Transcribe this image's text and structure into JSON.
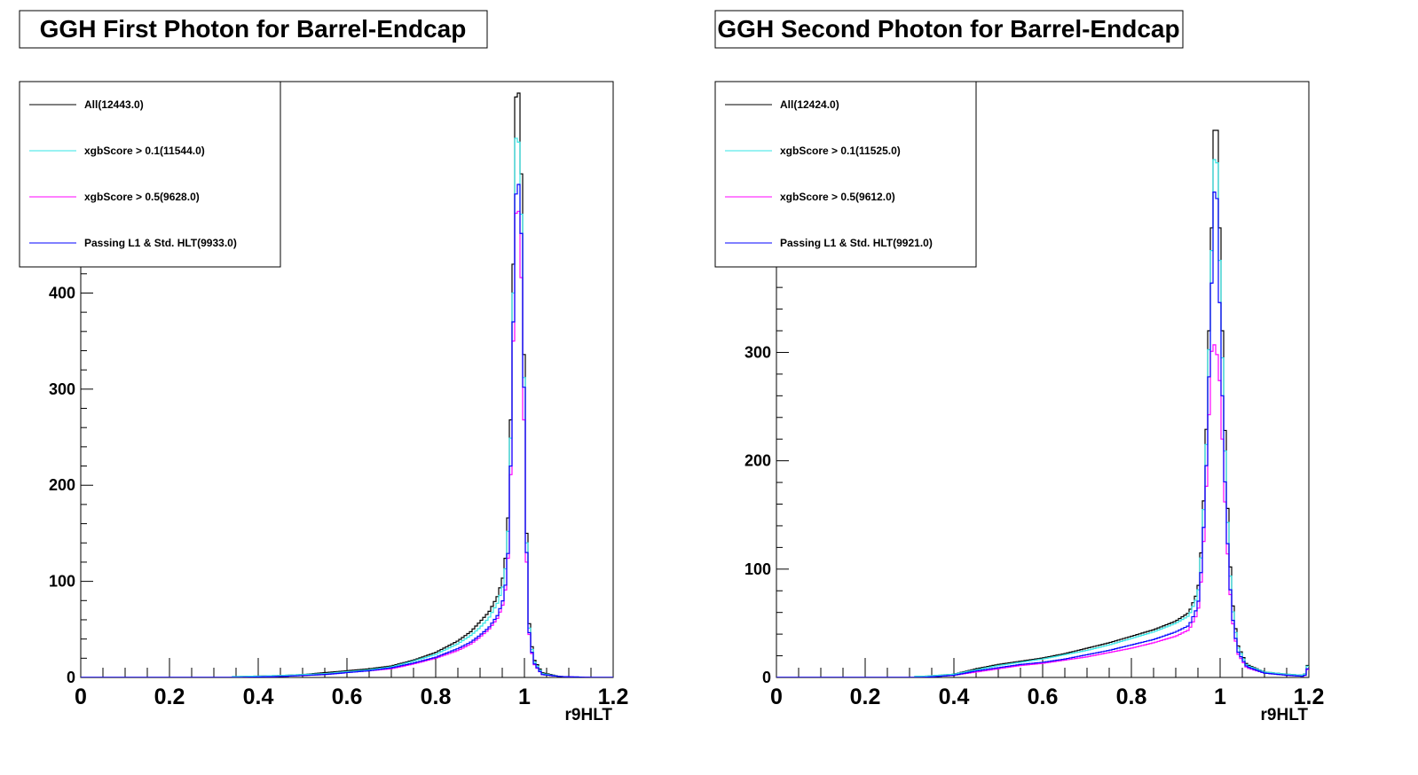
{
  "colors": {
    "all": "#000000",
    "xgb01": "#33e6e6",
    "xgb05": "#ff00ff",
    "l1hlt": "#0000ff"
  },
  "chart_data": [
    {
      "type": "histogram",
      "title": "GGH First Photon for Barrel-Endcap",
      "xlabel": "r9HLT",
      "ylabel": "",
      "xlim": [
        0,
        1.2
      ],
      "ylim": [
        0,
        620
      ],
      "xticks": [
        "0",
        "0.2",
        "0.4",
        "0.6",
        "0.8",
        "1",
        "1.2"
      ],
      "yticks": [
        "0",
        "100",
        "200",
        "300",
        "400"
      ],
      "legend_position": "top-left",
      "legend": [
        "All(12443.0)",
        "xgbScore > 0.1(11544.0)",
        "xgbScore > 0.5(9628.0)",
        "Passing L1 & Std. HLT(9933.0)"
      ],
      "series": [
        {
          "name": "All(12443.0)",
          "color_key": "all",
          "points": [
            [
              0.36,
              1
            ],
            [
              0.45,
              2
            ],
            [
              0.5,
              3
            ],
            [
              0.55,
              5
            ],
            [
              0.6,
              7
            ],
            [
              0.65,
              9
            ],
            [
              0.7,
              12
            ],
            [
              0.75,
              18
            ],
            [
              0.8,
              26
            ],
            [
              0.85,
              38
            ],
            [
              0.88,
              48
            ],
            [
              0.9,
              58
            ],
            [
              0.92,
              68
            ],
            [
              0.94,
              85
            ],
            [
              0.955,
              110
            ],
            [
              0.965,
              180
            ],
            [
              0.97,
              290
            ],
            [
              0.975,
              430
            ],
            [
              0.98,
              600
            ],
            [
              0.985,
              620
            ],
            [
              0.99,
              590
            ],
            [
              0.995,
              480
            ],
            [
              1.0,
              300
            ],
            [
              1.005,
              150
            ],
            [
              1.01,
              60
            ],
            [
              1.02,
              20
            ],
            [
              1.04,
              5
            ],
            [
              1.08,
              1
            ],
            [
              1.15,
              0
            ]
          ]
        },
        {
          "name": "xgbScore > 0.1(11544.0)",
          "color_key": "xgb01",
          "points": [
            [
              0.36,
              1
            ],
            [
              0.45,
              2
            ],
            [
              0.5,
              3
            ],
            [
              0.55,
              4
            ],
            [
              0.6,
              6
            ],
            [
              0.65,
              8
            ],
            [
              0.7,
              11
            ],
            [
              0.75,
              17
            ],
            [
              0.8,
              24
            ],
            [
              0.85,
              35
            ],
            [
              0.88,
              44
            ],
            [
              0.9,
              52
            ],
            [
              0.92,
              62
            ],
            [
              0.94,
              78
            ],
            [
              0.955,
              100
            ],
            [
              0.965,
              165
            ],
            [
              0.97,
              270
            ],
            [
              0.975,
              400
            ],
            [
              0.98,
              560
            ],
            [
              0.985,
              565
            ],
            [
              0.99,
              545
            ],
            [
              0.995,
              440
            ],
            [
              1.0,
              280
            ],
            [
              1.005,
              140
            ],
            [
              1.01,
              55
            ],
            [
              1.02,
              18
            ],
            [
              1.04,
              4
            ],
            [
              1.08,
              1
            ],
            [
              1.15,
              0
            ]
          ]
        },
        {
          "name": "xgbScore > 0.5(9628.0)",
          "color_key": "xgb05",
          "points": [
            [
              0.36,
              0
            ],
            [
              0.45,
              1
            ],
            [
              0.5,
              2
            ],
            [
              0.55,
              3
            ],
            [
              0.6,
              5
            ],
            [
              0.65,
              7
            ],
            [
              0.7,
              9
            ],
            [
              0.75,
              14
            ],
            [
              0.8,
              20
            ],
            [
              0.85,
              28
            ],
            [
              0.88,
              35
            ],
            [
              0.9,
              42
            ],
            [
              0.92,
              50
            ],
            [
              0.94,
              62
            ],
            [
              0.955,
              80
            ],
            [
              0.965,
              135
            ],
            [
              0.97,
              230
            ],
            [
              0.975,
              350
            ],
            [
              0.98,
              480
            ],
            [
              0.985,
              495
            ],
            [
              0.99,
              470
            ],
            [
              0.995,
              380
            ],
            [
              1.0,
              240
            ],
            [
              1.005,
              120
            ],
            [
              1.01,
              48
            ],
            [
              1.02,
              15
            ],
            [
              1.04,
              3
            ],
            [
              1.08,
              1
            ],
            [
              1.15,
              0
            ]
          ]
        },
        {
          "name": "Passing L1 & Std. HLT(9933.0)",
          "color_key": "l1hlt",
          "points": [
            [
              0.36,
              0
            ],
            [
              0.45,
              1
            ],
            [
              0.5,
              2
            ],
            [
              0.55,
              3
            ],
            [
              0.6,
              5
            ],
            [
              0.65,
              7
            ],
            [
              0.7,
              10
            ],
            [
              0.75,
              15
            ],
            [
              0.8,
              21
            ],
            [
              0.85,
              30
            ],
            [
              0.88,
              37
            ],
            [
              0.9,
              44
            ],
            [
              0.92,
              52
            ],
            [
              0.94,
              65
            ],
            [
              0.955,
              85
            ],
            [
              0.965,
              140
            ],
            [
              0.97,
              240
            ],
            [
              0.975,
              370
            ],
            [
              0.98,
              500
            ],
            [
              0.985,
              515
            ],
            [
              0.99,
              510
            ],
            [
              0.995,
              430
            ],
            [
              1.0,
              270
            ],
            [
              1.005,
              130
            ],
            [
              1.01,
              50
            ],
            [
              1.02,
              16
            ],
            [
              1.04,
              3
            ],
            [
              1.08,
              1
            ],
            [
              1.15,
              0
            ]
          ]
        }
      ]
    },
    {
      "type": "histogram",
      "title": "GGH Second Photon for Barrel-Endcap",
      "xlabel": "r9HLT",
      "ylabel": "",
      "xlim": [
        0,
        1.2
      ],
      "ylim": [
        0,
        550
      ],
      "xticks": [
        "0",
        "0.2",
        "0.4",
        "0.6",
        "0.8",
        "1",
        "1.2"
      ],
      "yticks": [
        "0",
        "100",
        "200",
        "300"
      ],
      "legend_position": "top-left",
      "legend": [
        "All(12424.0)",
        "xgbScore > 0.1(11525.0)",
        "xgbScore > 0.5(9612.0)",
        "Passing L1 & Std. HLT(9921.0)"
      ],
      "series": [
        {
          "name": "All(12424.0)",
          "color_key": "all",
          "points": [
            [
              0.33,
              1
            ],
            [
              0.4,
              3
            ],
            [
              0.45,
              8
            ],
            [
              0.5,
              12
            ],
            [
              0.55,
              15
            ],
            [
              0.6,
              18
            ],
            [
              0.65,
              22
            ],
            [
              0.7,
              27
            ],
            [
              0.75,
              32
            ],
            [
              0.8,
              38
            ],
            [
              0.85,
              44
            ],
            [
              0.9,
              52
            ],
            [
              0.93,
              60
            ],
            [
              0.95,
              80
            ],
            [
              0.96,
              130
            ],
            [
              0.97,
              240
            ],
            [
              0.98,
              400
            ],
            [
              0.99,
              550
            ],
            [
              1.0,
              400
            ],
            [
              1.01,
              240
            ],
            [
              1.02,
              120
            ],
            [
              1.03,
              60
            ],
            [
              1.04,
              30
            ],
            [
              1.06,
              12
            ],
            [
              1.1,
              5
            ],
            [
              1.15,
              3
            ],
            [
              1.19,
              2
            ],
            [
              1.2,
              15
            ]
          ]
        },
        {
          "name": "xgbScore > 0.1(11525.0)",
          "color_key": "xgb01",
          "points": [
            [
              0.33,
              1
            ],
            [
              0.4,
              3
            ],
            [
              0.45,
              7
            ],
            [
              0.5,
              11
            ],
            [
              0.55,
              14
            ],
            [
              0.6,
              17
            ],
            [
              0.65,
              21
            ],
            [
              0.7,
              25
            ],
            [
              0.75,
              30
            ],
            [
              0.8,
              36
            ],
            [
              0.85,
              42
            ],
            [
              0.9,
              50
            ],
            [
              0.93,
              57
            ],
            [
              0.95,
              76
            ],
            [
              0.96,
              125
            ],
            [
              0.97,
              225
            ],
            [
              0.98,
              380
            ],
            [
              0.99,
              520
            ],
            [
              1.0,
              370
            ],
            [
              1.01,
              220
            ],
            [
              1.02,
              110
            ],
            [
              1.03,
              55
            ],
            [
              1.04,
              28
            ],
            [
              1.06,
              11
            ],
            [
              1.1,
              5
            ],
            [
              1.15,
              3
            ],
            [
              1.19,
              2
            ],
            [
              1.2,
              14
            ]
          ]
        },
        {
          "name": "xgbScore > 0.5(9612.0)",
          "color_key": "xgb05",
          "points": [
            [
              0.33,
              0
            ],
            [
              0.4,
              2
            ],
            [
              0.45,
              5
            ],
            [
              0.5,
              8
            ],
            [
              0.55,
              11
            ],
            [
              0.6,
              13
            ],
            [
              0.65,
              16
            ],
            [
              0.7,
              19
            ],
            [
              0.75,
              23
            ],
            [
              0.8,
              27
            ],
            [
              0.85,
              32
            ],
            [
              0.9,
              38
            ],
            [
              0.93,
              44
            ],
            [
              0.95,
              60
            ],
            [
              0.96,
              100
            ],
            [
              0.97,
              185
            ],
            [
              0.98,
              300
            ],
            [
              0.99,
              310
            ],
            [
              1.0,
              270
            ],
            [
              1.01,
              170
            ],
            [
              1.02,
              90
            ],
            [
              1.03,
              45
            ],
            [
              1.04,
              22
            ],
            [
              1.06,
              9
            ],
            [
              1.1,
              4
            ],
            [
              1.15,
              2
            ],
            [
              1.19,
              1
            ],
            [
              1.2,
              10
            ]
          ]
        },
        {
          "name": "Passing L1 & Std. HLT(9921.0)",
          "color_key": "l1hlt",
          "points": [
            [
              0.33,
              0
            ],
            [
              0.4,
              2
            ],
            [
              0.45,
              6
            ],
            [
              0.5,
              9
            ],
            [
              0.55,
              12
            ],
            [
              0.6,
              14
            ],
            [
              0.65,
              17
            ],
            [
              0.7,
              21
            ],
            [
              0.75,
              25
            ],
            [
              0.8,
              30
            ],
            [
              0.85,
              35
            ],
            [
              0.9,
              42
            ],
            [
              0.93,
              48
            ],
            [
              0.95,
              66
            ],
            [
              0.96,
              110
            ],
            [
              0.97,
              205
            ],
            [
              0.98,
              350
            ],
            [
              0.99,
              490
            ],
            [
              1.0,
              330
            ],
            [
              1.01,
              190
            ],
            [
              1.02,
              95
            ],
            [
              1.03,
              48
            ],
            [
              1.04,
              24
            ],
            [
              1.06,
              10
            ],
            [
              1.1,
              4
            ],
            [
              1.15,
              2
            ],
            [
              1.19,
              1
            ],
            [
              1.2,
              11
            ]
          ]
        }
      ]
    }
  ]
}
